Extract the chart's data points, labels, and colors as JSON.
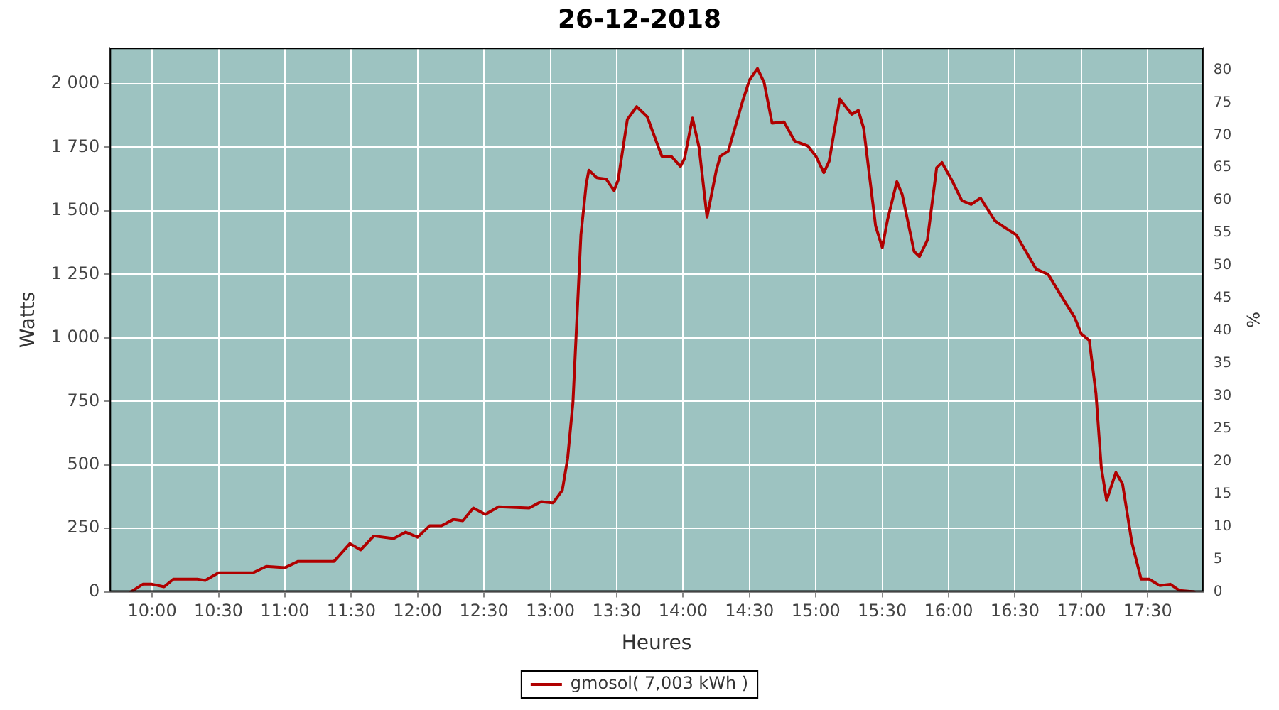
{
  "chart_data": {
    "type": "line",
    "title": "26-12-2018",
    "xlabel": "Heures",
    "ylabel": "Watts",
    "y2label": "%",
    "series": [
      {
        "name": "gmosol( 7,003 kWh )",
        "color": "#b00000",
        "x": [
          9.84,
          9.93,
          10.0,
          10.09,
          10.16,
          10.34,
          10.4,
          10.5,
          10.76,
          10.86,
          11.0,
          11.1,
          11.37,
          11.49,
          11.57,
          11.67,
          11.82,
          11.91,
          12.0,
          12.09,
          12.18,
          12.27,
          12.34,
          12.42,
          12.51,
          12.61,
          12.84,
          12.93,
          13.02,
          13.09,
          13.13,
          13.17,
          13.2,
          13.23,
          13.27,
          13.29,
          13.35,
          13.42,
          13.48,
          13.51,
          13.58,
          13.65,
          13.73,
          13.8,
          13.84,
          13.91,
          13.98,
          14.01,
          14.07,
          14.12,
          14.18,
          14.25,
          14.28,
          14.34,
          14.45,
          14.5,
          14.56,
          14.61,
          14.67,
          14.76,
          14.84,
          14.94,
          15.0,
          15.06,
          15.1,
          15.18,
          15.27,
          15.32,
          15.36,
          15.45,
          15.5,
          15.54,
          15.61,
          15.65,
          15.74,
          15.78,
          15.84,
          15.91,
          15.95,
          16.03,
          16.1,
          16.17,
          16.24,
          16.35,
          16.42,
          16.51,
          16.66,
          16.75,
          16.86,
          16.95,
          17.0,
          17.06,
          17.11,
          17.15,
          17.19,
          17.26,
          17.31,
          17.38,
          17.45,
          17.51,
          17.59,
          17.67,
          17.74,
          17.85
        ],
        "values": [
          0,
          30,
          30,
          20,
          50,
          50,
          45,
          75,
          75,
          100,
          95,
          120,
          120,
          190,
          165,
          220,
          210,
          235,
          215,
          260,
          260,
          285,
          280,
          330,
          305,
          335,
          330,
          355,
          350,
          400,
          525,
          745,
          1075,
          1405,
          1605,
          1660,
          1630,
          1625,
          1580,
          1620,
          1860,
          1910,
          1870,
          1770,
          1715,
          1715,
          1675,
          1705,
          1865,
          1750,
          1475,
          1660,
          1715,
          1735,
          1935,
          2015,
          2060,
          2005,
          1845,
          1850,
          1775,
          1755,
          1715,
          1650,
          1695,
          1940,
          1880,
          1895,
          1825,
          1440,
          1355,
          1465,
          1615,
          1565,
          1340,
          1320,
          1385,
          1670,
          1690,
          1615,
          1540,
          1525,
          1550,
          1460,
          1435,
          1405,
          1270,
          1250,
          1155,
          1080,
          1015,
          990,
          780,
          490,
          360,
          470,
          425,
          195,
          50,
          50,
          25,
          30,
          5,
          0
        ]
      }
    ],
    "xlim": [
      9.68,
      17.92
    ],
    "xticks": [
      {
        "value": 10,
        "label": "10:00"
      },
      {
        "value": 10.5,
        "label": "10:30"
      },
      {
        "value": 11,
        "label": "11:00"
      },
      {
        "value": 11.5,
        "label": "11:30"
      },
      {
        "value": 12,
        "label": "12:00"
      },
      {
        "value": 12.5,
        "label": "12:30"
      },
      {
        "value": 13,
        "label": "13:00"
      },
      {
        "value": 13.5,
        "label": "13:30"
      },
      {
        "value": 14,
        "label": "14:00"
      },
      {
        "value": 14.5,
        "label": "14:30"
      },
      {
        "value": 15,
        "label": "15:00"
      },
      {
        "value": 15.5,
        "label": "15:30"
      },
      {
        "value": 16,
        "label": "16:00"
      },
      {
        "value": 16.5,
        "label": "16:30"
      },
      {
        "value": 17,
        "label": "17:00"
      },
      {
        "value": 17.5,
        "label": "17:30"
      }
    ],
    "ylim": [
      0,
      2142
    ],
    "yticks": [
      0,
      250,
      500,
      750,
      {
        "value": 1000,
        "label": "1 000"
      },
      {
        "value": 1250,
        "label": "1 250"
      },
      {
        "value": 1500,
        "label": "1 500"
      },
      {
        "value": 1750,
        "label": "1 750"
      },
      {
        "value": 2000,
        "label": "2 000"
      }
    ],
    "y2lim": [
      0,
      83.4
    ],
    "y2ticks": [
      0,
      5,
      10,
      15,
      20,
      25,
      30,
      35,
      40,
      45,
      50,
      55,
      60,
      65,
      70,
      75,
      80
    ],
    "grid": true,
    "legend": "bottom",
    "marker": "none",
    "line_style": "solid"
  }
}
